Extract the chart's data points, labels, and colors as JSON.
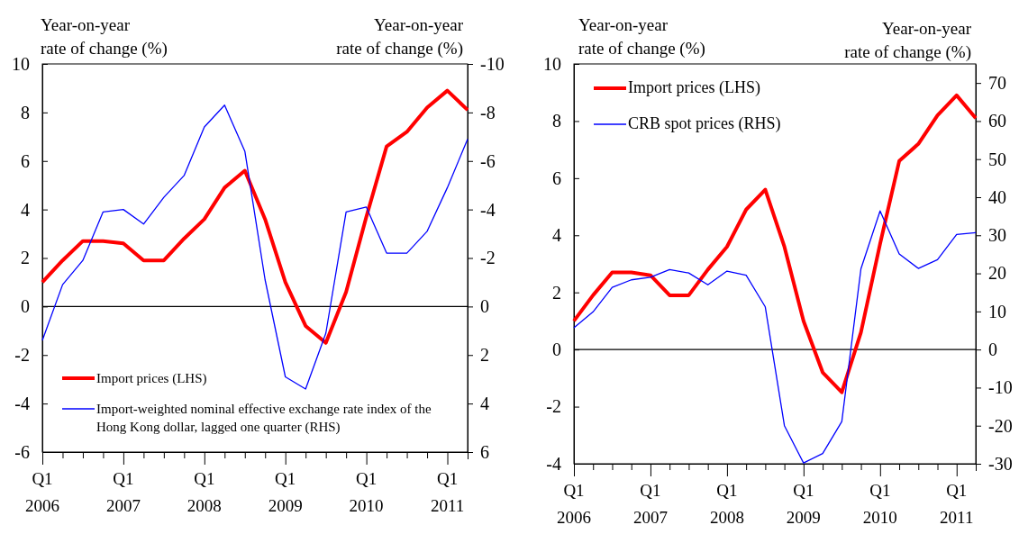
{
  "chart_data": [
    {
      "type": "line",
      "ylabel": "Year-on-year\nrate of change (%)",
      "y2label": "Year-on-year\nrate of change (%)",
      "categories": [
        "Q1\n2006",
        null,
        null,
        null,
        "Q1\n2007",
        null,
        null,
        null,
        "Q1\n2008",
        null,
        null,
        null,
        "Q1\n2009",
        null,
        null,
        null,
        "Q1\n2010",
        null,
        null,
        null,
        "Q1\n2011",
        null
      ],
      "series": [
        {
          "name": "Import prices (LHS)",
          "color": "#ff0000",
          "values": [
            1.0,
            1.9,
            2.7,
            2.7,
            2.6,
            1.9,
            1.9,
            2.8,
            3.6,
            4.9,
            5.6,
            3.6,
            1.0,
            -0.8,
            -1.5,
            0.6,
            3.7,
            6.6,
            7.2,
            8.2,
            8.9,
            8.1
          ]
        },
        {
          "name": "Import-weighted nominal effective exchange rate index of the Hong Kong dollar, lagged one quarter (RHS)",
          "color": "#0000ff",
          "axis": "y2",
          "values": [
            1.4,
            -0.9,
            -1.9,
            -3.9,
            -4.0,
            -3.4,
            -4.5,
            -5.4,
            -7.4,
            -8.3,
            -6.4,
            -1.1,
            2.9,
            3.4,
            1.1,
            -3.9,
            -4.1,
            -2.2,
            -2.2,
            -3.1,
            -4.9,
            -6.9
          ]
        }
      ],
      "ylim": [
        -6,
        10
      ],
      "yticks": [
        -6,
        -4,
        -2,
        0,
        2,
        4,
        6,
        8,
        10
      ],
      "y2lim": [
        6,
        -10
      ],
      "y2ticks": [
        6,
        4,
        2,
        0,
        -2,
        -4,
        -6,
        -8,
        -10
      ],
      "ref_lines": [
        {
          "axis": "y",
          "value": 0,
          "color": "#000000"
        }
      ],
      "legend": "bottom left",
      "grid": false
    },
    {
      "type": "line",
      "ylabel": "Year-on-year\nrate of change (%)",
      "y2label": "Year-on-year\nrate of change (%)",
      "categories": [
        "Q1\n2006",
        null,
        null,
        null,
        "Q1\n2007",
        null,
        null,
        null,
        "Q1\n2008",
        null,
        null,
        null,
        "Q1\n2009",
        null,
        null,
        null,
        "Q1\n2010",
        null,
        null,
        null,
        "Q1\n2011",
        null
      ],
      "series": [
        {
          "name": "Import prices (LHS)",
          "color": "#ff0000",
          "values": [
            1.0,
            1.9,
            2.7,
            2.7,
            2.6,
            1.9,
            1.9,
            2.8,
            3.6,
            4.9,
            5.6,
            3.6,
            1.0,
            -0.8,
            -1.5,
            0.6,
            3.7,
            6.6,
            7.2,
            8.2,
            8.9,
            8.1
          ]
        },
        {
          "name": "CRB spot prices (RHS)",
          "color": "#0000ff",
          "axis": "y2",
          "values": [
            5.7,
            9.9,
            16.3,
            18.3,
            19.0,
            21.0,
            20.1,
            17.0,
            20.6,
            19.5,
            11.2,
            -20.0,
            -29.8,
            -27.3,
            -18.9,
            21.2,
            36.4,
            25.1,
            21.3,
            23.6,
            30.2,
            30.7
          ]
        }
      ],
      "ylim": [
        -4,
        10
      ],
      "yticks": [
        -4,
        -2,
        0,
        2,
        4,
        6,
        8,
        10
      ],
      "y2lim": [
        -30,
        75
      ],
      "y2ticks": [
        -30,
        -20,
        -10,
        0,
        10,
        20,
        30,
        40,
        50,
        60,
        70
      ],
      "ref_lines": [
        {
          "axis": "y",
          "value": 0,
          "color": "#000000"
        }
      ],
      "legend": "top left",
      "grid": false
    }
  ]
}
